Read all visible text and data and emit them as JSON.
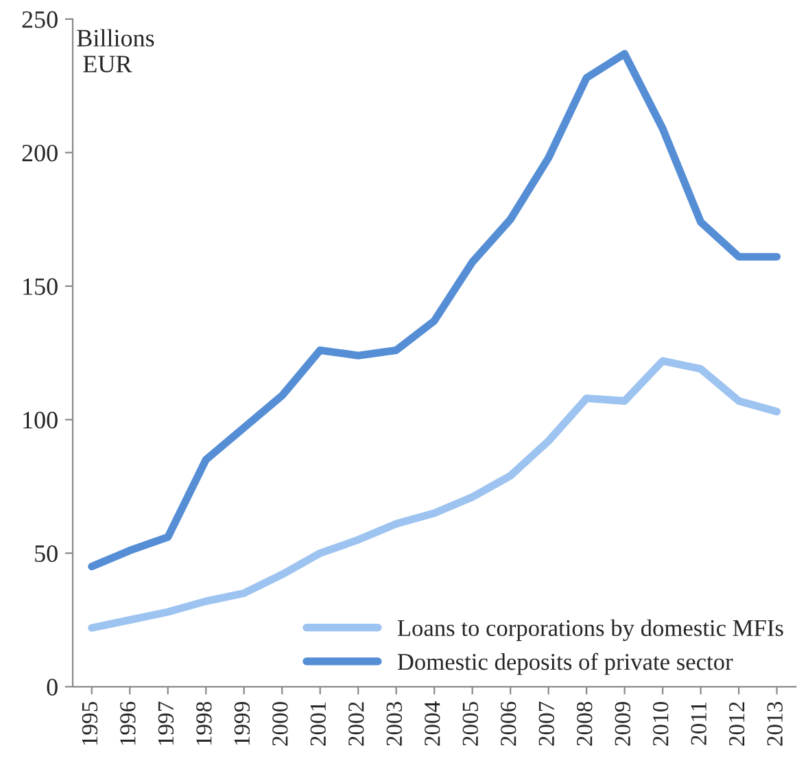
{
  "chart_data": {
    "type": "line",
    "categories": [
      "1995",
      "1996",
      "1997",
      "1998",
      "1999",
      "2000",
      "2001",
      "2002",
      "2003",
      "2004",
      "2005",
      "2006",
      "2007",
      "2008",
      "2009",
      "2010",
      "2011",
      "2012",
      "2013"
    ],
    "series": [
      {
        "name": "Loans to corporations by domestic MFIs",
        "color": "#9dc3f0",
        "values": [
          22,
          25,
          28,
          32,
          35,
          42,
          50,
          55,
          61,
          65,
          71,
          79,
          92,
          108,
          107,
          122,
          119,
          107,
          103
        ]
      },
      {
        "name": "Domestic deposits of private sector",
        "color": "#558ed5",
        "values": [
          45,
          51,
          56,
          85,
          97,
          109,
          126,
          124,
          126,
          137,
          159,
          175,
          198,
          228,
          237,
          209,
          174,
          161,
          161
        ]
      }
    ],
    "ylim": [
      0,
      250
    ],
    "yticks": [
      0,
      50,
      100,
      150,
      200,
      250
    ],
    "annotations": [
      "Billions\n EUR"
    ],
    "legend": "bottom right",
    "grid": false,
    "marker": "none",
    "line_style": "solid"
  }
}
